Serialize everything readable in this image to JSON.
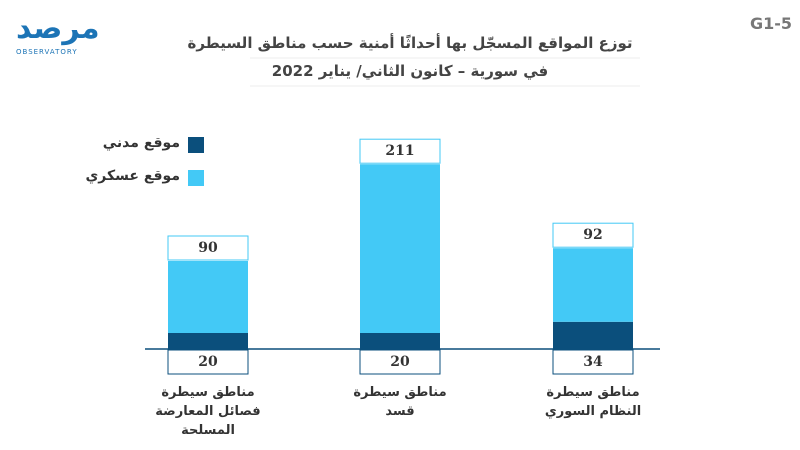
{
  "code": "G1-5",
  "logo": {
    "text": "مرصد",
    "subtitle": "OBSERVATORY"
  },
  "chart_data": {
    "type": "stacked-bar",
    "title": "توزع المواقع المسجّل بها أحداثًا أمنية حسب مناطق السيطرة",
    "subtitle": "في سورية – كانون الثاني/ يناير 2022",
    "categories": [
      "مناطق سيطرة فصائل المعارضة المسلحة",
      "مناطق سيطرة قسد",
      "مناطق سيطرة النظام السوري"
    ],
    "series": [
      {
        "name": "موقع مدني",
        "color": "#0b4f7c",
        "values": [
          20,
          20,
          34
        ]
      },
      {
        "name": "موقع عسكري",
        "color": "#43c9f6",
        "values": [
          90,
          211,
          92
        ]
      }
    ]
  }
}
